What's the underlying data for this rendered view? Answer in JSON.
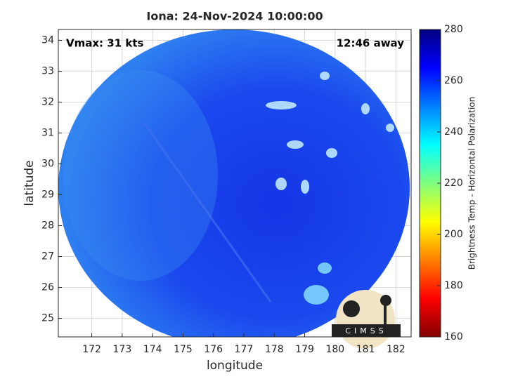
{
  "map": {
    "title": "Iona: 24-Nov-2024 10:00:00",
    "annotations": {
      "left": "Vmax: 31 kts",
      "right": "12:46 away"
    },
    "x_label": "longitude",
    "y_label": "latitude",
    "xlim": [
      170.9,
      182.5
    ],
    "xticks": [
      172,
      173,
      174,
      175,
      176,
      177,
      178,
      179,
      180,
      181,
      182
    ],
    "ylim": [
      24.4,
      34.35
    ],
    "yticks": [
      25,
      26,
      27,
      28,
      29,
      30,
      31,
      32,
      33,
      34
    ],
    "grid": true,
    "colorbar": {
      "label": "Brightness Temp - Horizontal Polarization",
      "lim": [
        160,
        280
      ],
      "ticks": [
        160,
        180,
        200,
        220,
        240,
        260,
        280
      ],
      "colormap": "jet"
    },
    "logo": "CIMSS"
  }
}
